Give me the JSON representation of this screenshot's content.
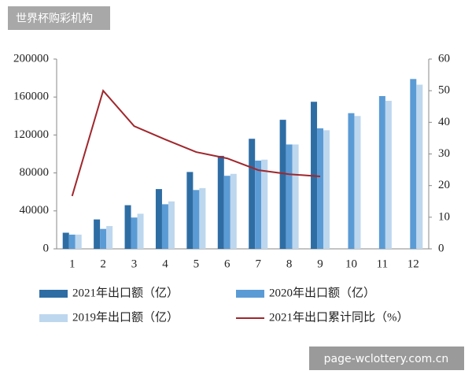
{
  "header_label": "世界杯购彩机构",
  "watermark": "page-wclottery.com.cn",
  "chart_data": {
    "type": "bar",
    "categories": [
      "1",
      "2",
      "3",
      "4",
      "5",
      "6",
      "7",
      "8",
      "9",
      "10",
      "11",
      "12"
    ],
    "series": [
      {
        "name": "2021年出口额（亿）",
        "color": "#2e6da4",
        "values": [
          17000,
          31000,
          46000,
          63000,
          81000,
          98000,
          116000,
          136000,
          155000,
          null,
          null,
          null
        ]
      },
      {
        "name": "2020年出口额（亿）",
        "color": "#5b9bd5",
        "values": [
          15000,
          21000,
          33000,
          47000,
          62000,
          77000,
          93000,
          110000,
          127000,
          143000,
          161000,
          179000
        ]
      },
      {
        "name": "2019年出口额（亿）",
        "color": "#bdd7ee",
        "values": [
          15000,
          24000,
          37000,
          50000,
          64000,
          79000,
          94000,
          110000,
          125000,
          140000,
          156000,
          173000
        ]
      },
      {
        "name": "2021年出口累计同比（%）",
        "color": "#a0272d",
        "type": "line",
        "axis": "y2",
        "values": [
          16.7,
          50,
          38.8,
          34.6,
          30.6,
          28.6,
          24.9,
          23.6,
          22.9,
          null,
          null,
          null
        ]
      }
    ],
    "ylim": [
      0,
      200000
    ],
    "yticks": [
      0,
      40000,
      80000,
      120000,
      160000,
      200000
    ],
    "y2lim": [
      0,
      60
    ],
    "y2ticks": [
      0,
      10,
      20,
      30,
      40,
      50,
      60
    ],
    "grid": false
  }
}
